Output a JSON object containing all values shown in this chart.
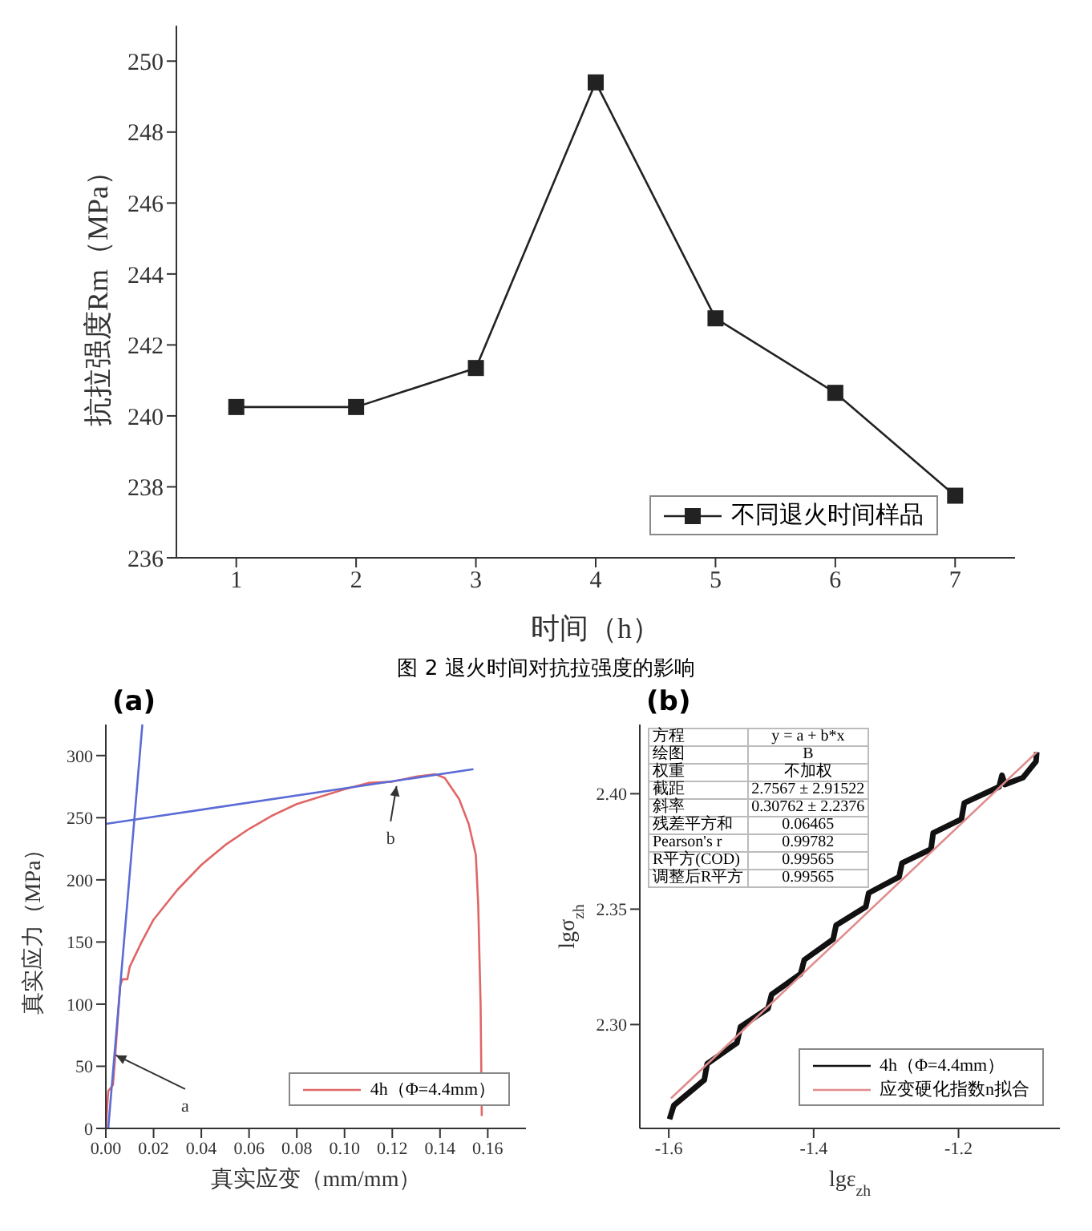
{
  "chart_data": [
    {
      "type": "line",
      "x": [
        1,
        2,
        3,
        4,
        5,
        6,
        7
      ],
      "xlabel": "时间（h）",
      "ylabel": "抗拉强度Rm（MPa）",
      "xlim": [
        0.5,
        7.5
      ],
      "ylim": [
        236,
        251
      ],
      "xticks": [
        1,
        2,
        3,
        4,
        5,
        6,
        7
      ],
      "yticks": [
        236,
        238,
        240,
        242,
        244,
        246,
        248,
        250
      ],
      "marker": "square",
      "legend": "bottom right",
      "annotations": [
        "图 2 退火时间对抗拉强度的影响"
      ],
      "series": [
        {
          "name": "不同退火时间样品",
          "color": "#222222",
          "values": [
            240.25,
            240.25,
            241.35,
            249.4,
            242.75,
            240.65,
            237.75
          ]
        }
      ]
    },
    {
      "type": "line",
      "title": "(a)",
      "xlabel": "真实应变（mm/mm）",
      "ylabel": "真实应力（MPa）",
      "xlim": [
        0,
        0.176
      ],
      "ylim": [
        0,
        325
      ],
      "xticks": [
        {
          "value": 0,
          "label": "0.00"
        },
        0.02,
        0.04,
        0.06,
        0.08,
        {
          "value": 0.1,
          "label": "0.10"
        },
        0.12,
        0.14,
        0.16
      ],
      "yticks": [
        0,
        50,
        100,
        150,
        200,
        250,
        300
      ],
      "legend": "bottom right",
      "marker": "none",
      "annotations": [
        {
          "text": "a",
          "x": 0.003,
          "y": 60
        },
        {
          "text": "b",
          "x": 0.122,
          "y": 278
        }
      ],
      "series": [
        {
          "name": "4h（Φ=4.4mm）",
          "color": "#e06666",
          "x": [
            0,
            0.001,
            0.003,
            0.004,
            0.006,
            0.007,
            0.009,
            0.01,
            0.015,
            0.02,
            0.03,
            0.04,
            0.05,
            0.06,
            0.07,
            0.08,
            0.09,
            0.1,
            0.11,
            0.12,
            0.13,
            0.138,
            0.142,
            0.148,
            0.152,
            0.155,
            0.156,
            0.157,
            0.1575
          ],
          "values": [
            0,
            30,
            35,
            60,
            115,
            120,
            120,
            130,
            150,
            168,
            192,
            212,
            228,
            241,
            252,
            261,
            267,
            273,
            278,
            279,
            283,
            285,
            282,
            265,
            245,
            220,
            180,
            100,
            10
          ]
        },
        {
          "color": "#5b6bd6",
          "x": [
            0.001,
            0.0153
          ],
          "values": [
            0,
            325
          ]
        },
        {
          "color": "#5b6bd6",
          "x": [
            0,
            0.154
          ],
          "values": [
            245,
            289
          ]
        }
      ]
    },
    {
      "type": "line",
      "title": "(b)",
      "xlabel": "lgε$_{zh}$",
      "ylabel": "lgσ$_{zh}$",
      "xlim": [
        -1.64,
        -1.06
      ],
      "ylim": [
        2.255,
        2.43
      ],
      "xticks": [
        -1.6,
        -1.4,
        -1.2
      ],
      "yticks": [
        {
          "value": 2.3,
          "label": "2.30"
        },
        {
          "value": 2.35,
          "label": "2.35"
        },
        {
          "value": 2.4,
          "label": "2.40"
        }
      ],
      "legend": "bottom right",
      "annotations": [
        "方程",
        "y = a + b*x",
        "绘图",
        "B",
        "权重",
        "不加权",
        "截距",
        "2.7567 ± 2.91522",
        "斜率",
        "0.30762 ± 2.2376",
        "残差平方和",
        "0.06465",
        "Pearson's r",
        "0.99782",
        "R平方(COD)",
        "0.99565",
        "调整后R平方",
        "0.99565"
      ],
      "series": [
        {
          "name": "4h（Φ=4.4mm）",
          "color": "#111111",
          "x": [
            -1.599,
            -1.593,
            -1.551,
            -1.547,
            -1.506,
            -1.501,
            -1.463,
            -1.458,
            -1.418,
            -1.413,
            -1.373,
            -1.369,
            -1.328,
            -1.324,
            -1.282,
            -1.278,
            -1.238,
            -1.235,
            -1.196,
            -1.192,
            -1.144,
            -1.14,
            -1.136,
            -1.111,
            -1.093,
            -1.092
          ],
          "values": [
            2.259,
            2.265,
            2.276,
            2.283,
            2.292,
            2.299,
            2.307,
            2.313,
            2.322,
            2.328,
            2.337,
            2.343,
            2.351,
            2.357,
            2.364,
            2.37,
            2.376,
            2.383,
            2.389,
            2.396,
            2.403,
            2.408,
            2.404,
            2.407,
            2.414,
            2.418
          ]
        },
        {
          "name": "应变硬化指数n拟合",
          "color": "#e08c8c",
          "x": [
            -1.597,
            -1.092
          ],
          "values": [
            2.268,
            2.418
          ]
        }
      ]
    }
  ]
}
